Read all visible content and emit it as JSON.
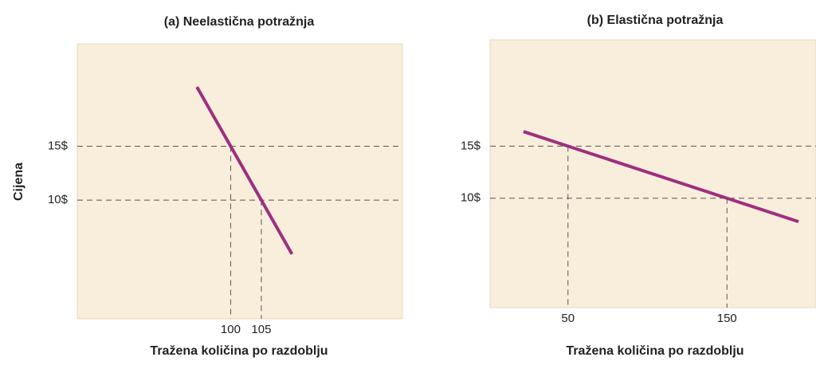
{
  "chart_data": [
    {
      "type": "line",
      "title": "(a) Neelastična potražnja",
      "xlabel": "Tražena količina po razdoblju",
      "ylabel": "Cijena",
      "x": [
        94.5,
        100,
        105,
        110
      ],
      "values": [
        20.5,
        15,
        10,
        5
      ],
      "color": "#9e2f80",
      "xlim": [
        75,
        128
      ],
      "ylim": [
        -1,
        24.5
      ],
      "xticks": [
        100,
        105
      ],
      "yticks": [
        {
          "value": 10,
          "label": "10$"
        },
        {
          "value": 15,
          "label": "15$"
        }
      ]
    },
    {
      "type": "line",
      "title": "(b) Elastična potražnja",
      "xlabel": "Tražena količina po razdoblju",
      "x": [
        22,
        50,
        150,
        195
      ],
      "values": [
        16.4,
        15,
        10,
        7.75
      ],
      "color": "#9e2f80",
      "xlim": [
        1,
        206
      ],
      "ylim": [
        -0.5,
        25.2
      ],
      "xticks": [
        50,
        150
      ],
      "yticks": [
        {
          "value": 10,
          "label": "10$"
        },
        {
          "value": 15,
          "label": "15$"
        }
      ]
    }
  ]
}
